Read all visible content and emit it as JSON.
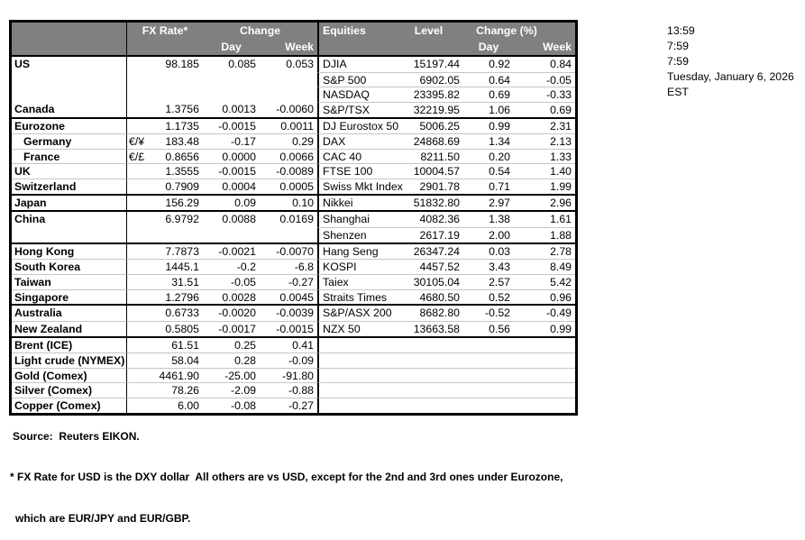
{
  "timestamp_panel": {
    "lines": [
      "13:59",
      "7:59",
      "7:59",
      "Tuesday, January 6, 2026",
      "EST"
    ]
  },
  "table": {
    "header": {
      "fx_rate": "FX Rate*",
      "change": "Change",
      "day": "Day",
      "week": "Week",
      "equities": "Equities",
      "level": "Level",
      "change_pct": "Change (%)"
    },
    "groups": [
      {
        "rows": [
          {
            "country": "US",
            "fx_rate": "98.185",
            "fx_day": "0.085",
            "fx_week": "0.053",
            "equity": "DJIA",
            "level": "15197.44",
            "eq_day": "0.92",
            "eq_week": "0.84"
          },
          {
            "equity": "S&P 500",
            "level": "6902.05",
            "eq_day": "0.64",
            "eq_week": "-0.05",
            "no_left_line": true
          },
          {
            "equity": "NASDAQ",
            "level": "23395.82",
            "eq_day": "0.69",
            "eq_week": "-0.33",
            "no_left_line": true
          },
          {
            "country": "Canada",
            "fx_rate": "1.3756",
            "fx_day": "0.0013",
            "fx_week": "-0.0060",
            "equity": "S&P/TSX",
            "level": "32219.95",
            "eq_day": "1.06",
            "eq_week": "0.69",
            "no_left_line": true
          }
        ]
      },
      {
        "rows": [
          {
            "country": "Eurozone",
            "fx_rate": "1.1735",
            "fx_day": "-0.0015",
            "fx_week": "0.0011",
            "equity": "DJ Eurostox 50",
            "level": "5006.25",
            "eq_day": "0.99",
            "eq_week": "2.31"
          },
          {
            "country": "Germany",
            "indent": true,
            "symbol": "€/¥",
            "fx_rate": "183.48",
            "fx_day": "-0.17",
            "fx_week": "0.29",
            "equity": "DAX",
            "level": "24868.69",
            "eq_day": "1.34",
            "eq_week": "2.13"
          },
          {
            "country": "France",
            "indent": true,
            "symbol": "€/£",
            "fx_rate": "0.8656",
            "fx_day": "0.0000",
            "fx_week": "0.0066",
            "equity": "CAC 40",
            "level": "8211.50",
            "eq_day": "0.20",
            "eq_week": "1.33"
          },
          {
            "country": "UK",
            "fx_rate": "1.3555",
            "fx_day": "-0.0015",
            "fx_week": "-0.0089",
            "equity": "FTSE 100",
            "level": "10004.57",
            "eq_day": "0.54",
            "eq_week": "1.40"
          },
          {
            "country": "Switzerland",
            "fx_rate": "0.7909",
            "fx_day": "0.0004",
            "fx_week": "0.0005",
            "equity": "Swiss Mkt Index",
            "level": "2901.78",
            "eq_day": "0.71",
            "eq_week": "1.99"
          }
        ]
      },
      {
        "rows": [
          {
            "country": "Japan",
            "fx_rate": "156.29",
            "fx_day": "0.09",
            "fx_week": "0.10",
            "equity": "Nikkei",
            "level": "51832.80",
            "eq_day": "2.97",
            "eq_week": "2.96"
          }
        ]
      },
      {
        "rows": [
          {
            "country": "China",
            "fx_rate": "6.9792",
            "fx_day": "0.0088",
            "fx_week": "0.0169",
            "equity": "Shanghai",
            "level": "4082.36",
            "eq_day": "1.38",
            "eq_week": "1.61"
          },
          {
            "equity": "Shenzen",
            "level": "2617.19",
            "eq_day": "2.00",
            "eq_week": "1.88",
            "no_left_line": true
          }
        ]
      },
      {
        "rows": [
          {
            "country": "Hong Kong",
            "fx_rate": "7.7873",
            "fx_day": "-0.0021",
            "fx_week": "-0.0070",
            "equity": "Hang Seng",
            "level": "26347.24",
            "eq_day": "0.03",
            "eq_week": "2.78"
          },
          {
            "country": "South Korea",
            "fx_rate": "1445.1",
            "fx_day": "-0.2",
            "fx_week": "-6.8",
            "equity": "KOSPI",
            "level": "4457.52",
            "eq_day": "3.43",
            "eq_week": "8.49"
          },
          {
            "country": "Taiwan",
            "fx_rate": "31.51",
            "fx_day": "-0.05",
            "fx_week": "-0.27",
            "equity": "Taiex",
            "level": "30105.04",
            "eq_day": "2.57",
            "eq_week": "5.42"
          },
          {
            "country": "Singapore",
            "fx_rate": "1.2796",
            "fx_day": "0.0028",
            "fx_week": "0.0045",
            "equity": "Straits Times",
            "level": "4680.50",
            "eq_day": "0.52",
            "eq_week": "0.96"
          }
        ]
      },
      {
        "rows": [
          {
            "country": "Australia",
            "fx_rate": "0.6733",
            "fx_day": "-0.0020",
            "fx_week": "-0.0039",
            "equity": "S&P/ASX  200",
            "level": "8682.80",
            "eq_day": "-0.52",
            "eq_week": "-0.49"
          },
          {
            "country": "New Zealand",
            "fx_rate": "0.5805",
            "fx_day": "-0.0017",
            "fx_week": "-0.0015",
            "equity": "NZX 50",
            "level": "13663.58",
            "eq_day": "0.56",
            "eq_week": "0.99"
          }
        ]
      },
      {
        "right_grid": false,
        "rows": [
          {
            "country": "Brent (ICE)",
            "fx_rate": "61.51",
            "fx_day": "0.25",
            "fx_week": "0.41"
          },
          {
            "country": "Light crude (NYMEX)",
            "fx_rate": "58.04",
            "fx_day": "0.28",
            "fx_week": "-0.09"
          },
          {
            "country": "Gold (Comex)",
            "fx_rate": "4461.90",
            "fx_day": "-25.00",
            "fx_week": "-91.80"
          },
          {
            "country": "Silver (Comex)",
            "fx_rate": "78.26",
            "fx_day": "-2.09",
            "fx_week": "-0.88"
          },
          {
            "country": "Copper (Comex)",
            "fx_rate": "6.00",
            "fx_day": "-0.08",
            "fx_week": "-0.27"
          }
        ]
      }
    ]
  },
  "footnotes": {
    "source": "Source:  Reuters EIKON.",
    "line1": "* FX Rate for USD is the DXY dollar  All others are vs USD, except for the 2nd and 3rd ones under Eurozone,",
    "line2": "which are EUR/JPY and EUR/GBP."
  },
  "colors": {
    "header_bg": "#808080",
    "header_text": "#ffffff",
    "gridline": "#c6c6c6",
    "border": "#000000"
  }
}
